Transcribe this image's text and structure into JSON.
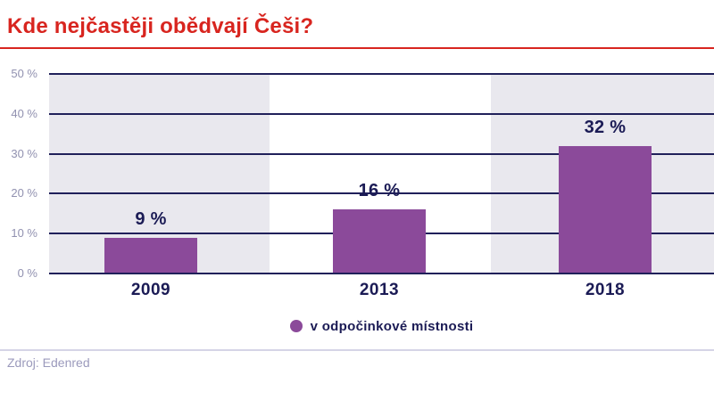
{
  "header": {
    "title": "Kde nejčastěji obědvají Češi?"
  },
  "legend": {
    "label": "v odpočinkové místnosti"
  },
  "footer": {
    "source": "Zdroj: Edenred"
  },
  "colors": {
    "accent_red": "#d8251f",
    "bar_purple": "#8b4a9a",
    "text_navy": "#1b1b55",
    "grid_navy": "#20205a",
    "stripe_gray": "#e9e8ee",
    "tick_gray": "#9191b0",
    "source_gray": "#9b9abc",
    "footer_divider": "#d5d4e6"
  },
  "chart_data": {
    "type": "bar",
    "title": "Kde nejčastěji obědvají Češi?",
    "categories": [
      "2009",
      "2013",
      "2018"
    ],
    "series": [
      {
        "name": "v odpočinkové místnosti",
        "color": "#8b4a9a",
        "values": [
          9,
          16,
          32
        ]
      }
    ],
    "value_labels": [
      "9 %",
      "16 %",
      "32 %"
    ],
    "xlabel": "",
    "ylabel": "",
    "ylim": [
      0,
      50
    ],
    "ytick_labels_top_to_bottom": [
      "50 %",
      "40 %",
      "30 %",
      "20 %",
      "10 %",
      "0 %"
    ],
    "grid": "horizontal",
    "plot_background": "alternating-column-stripes",
    "legend_position": "bottom-center",
    "source": "Zdroj: Edenred"
  }
}
